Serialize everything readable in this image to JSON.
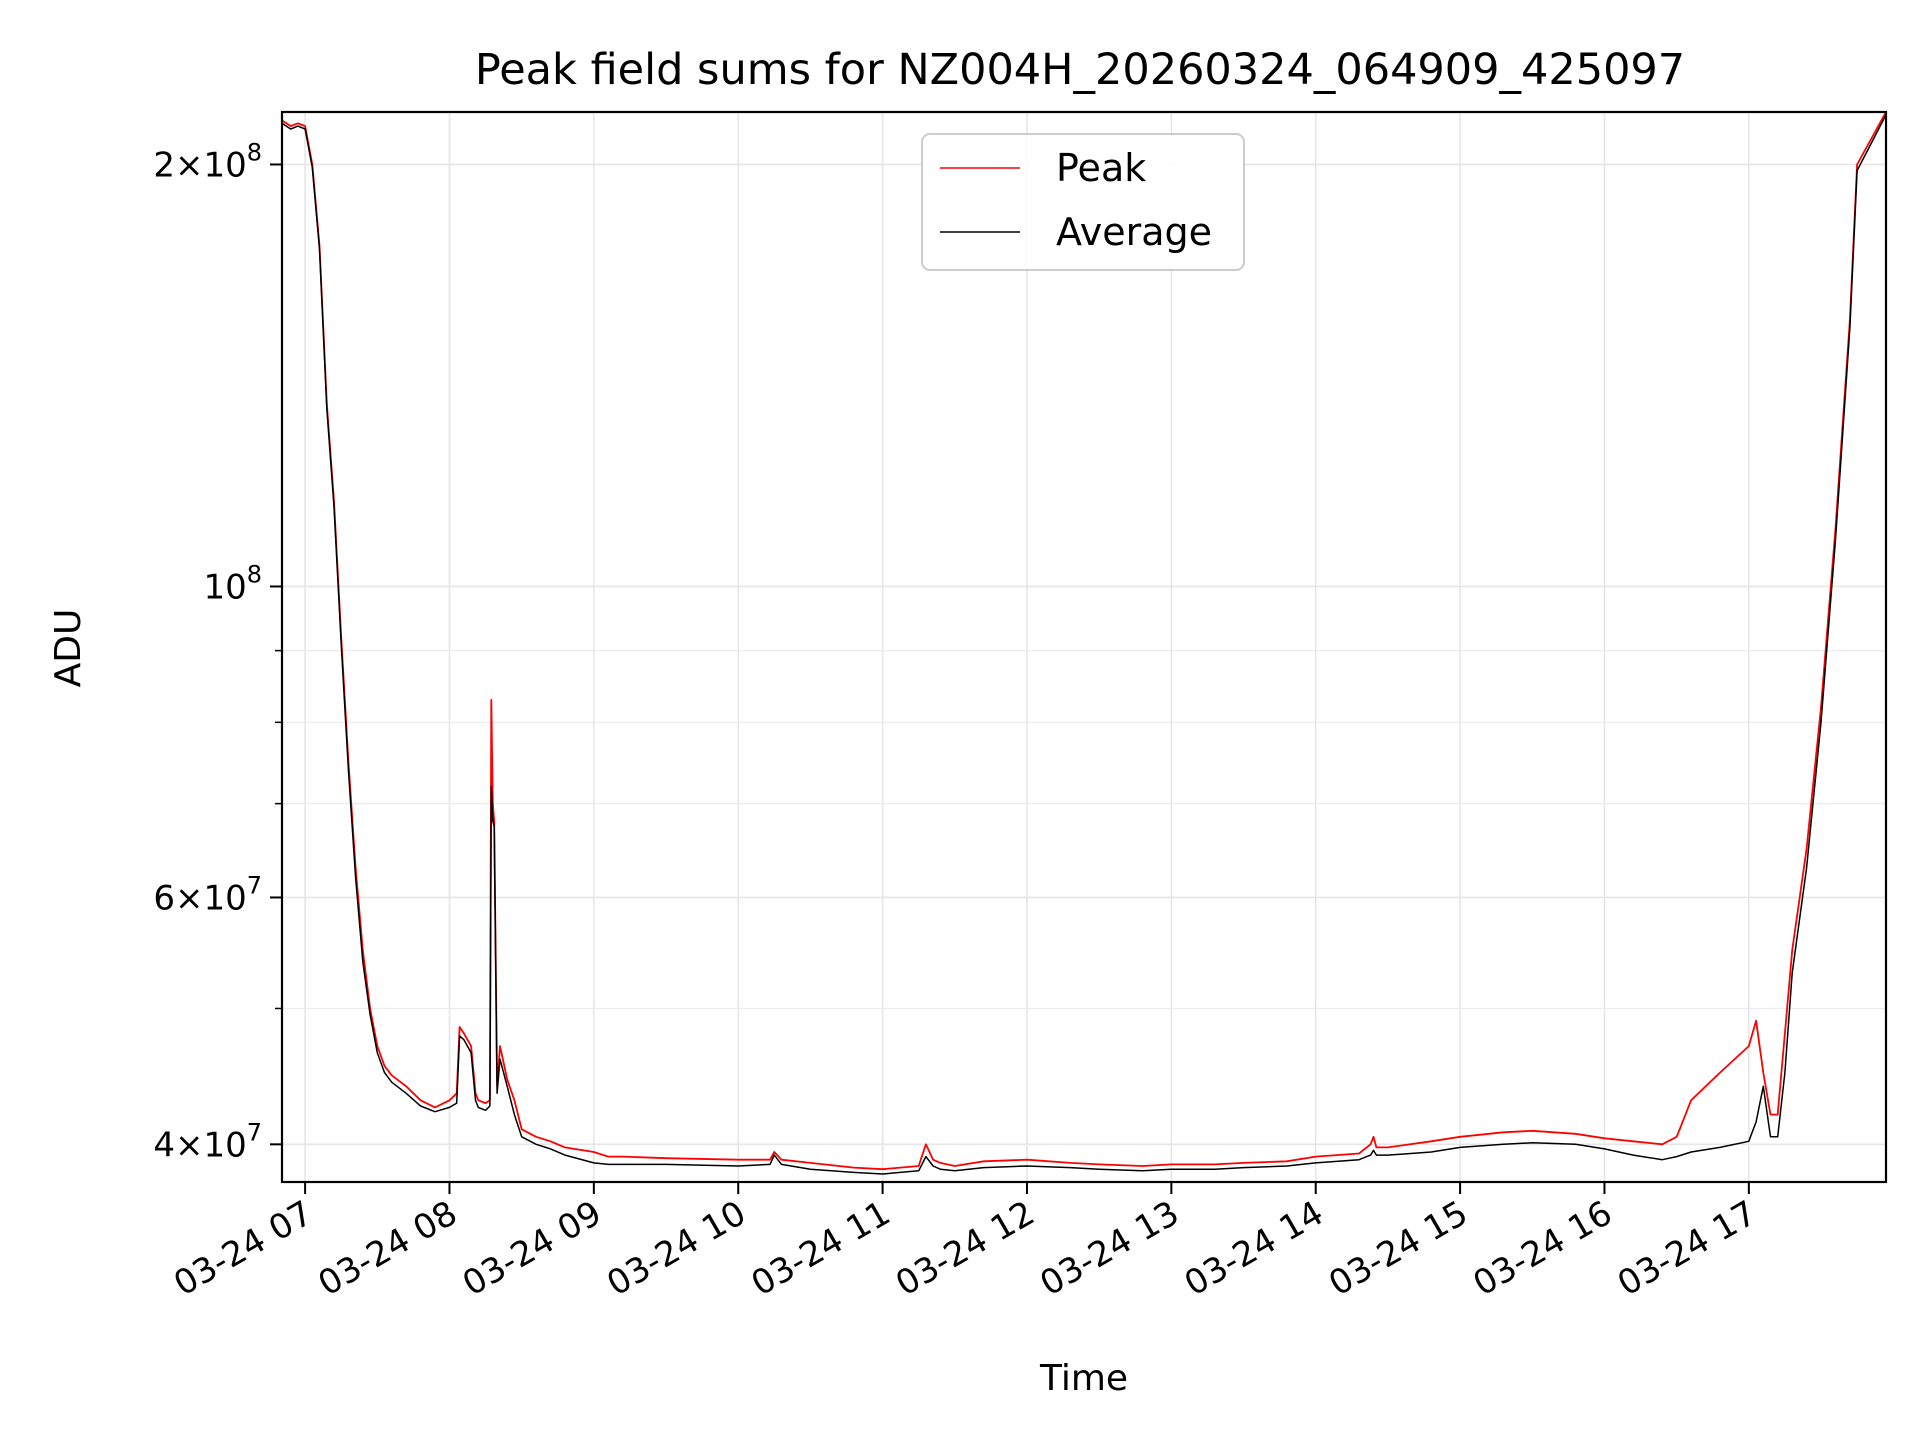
{
  "chart_data": {
    "type": "line",
    "title": "Peak field sums for NZ004H_20260324_064909_425097",
    "xlabel": "Time",
    "ylabel": "ADU",
    "yscale": "log",
    "xlim": [
      6.84,
      17.95
    ],
    "ylim": [
      37600000,
      218000000
    ],
    "grid": true,
    "legend_position": "top-center",
    "x_ticks": [
      {
        "value": 7,
        "label": "03-24 07"
      },
      {
        "value": 8,
        "label": "03-24 08"
      },
      {
        "value": 9,
        "label": "03-24 09"
      },
      {
        "value": 10,
        "label": "03-24 10"
      },
      {
        "value": 11,
        "label": "03-24 11"
      },
      {
        "value": 12,
        "label": "03-24 12"
      },
      {
        "value": 13,
        "label": "03-24 13"
      },
      {
        "value": 14,
        "label": "03-24 14"
      },
      {
        "value": 15,
        "label": "03-24 15"
      },
      {
        "value": 16,
        "label": "03-24 16"
      },
      {
        "value": 17,
        "label": "03-24 17"
      }
    ],
    "y_major_ticks": [
      {
        "value": 40000000,
        "base": "4",
        "exp": "7"
      },
      {
        "value": 60000000,
        "base": "6",
        "exp": "7"
      },
      {
        "value": 100000000,
        "base": "",
        "exp": "8"
      },
      {
        "value": 200000000,
        "base": "2",
        "exp": "8"
      }
    ],
    "y_minor_ticks": [
      50000000,
      70000000,
      80000000,
      90000000,
      300000000
    ],
    "y_tick_times_symbol": "×",
    "y_tick_base": "10",
    "series": [
      {
        "name": "Peak",
        "color": "#ff0000",
        "x": [
          6.84,
          6.9,
          6.95,
          7.0,
          7.05,
          7.1,
          7.15,
          7.2,
          7.25,
          7.3,
          7.35,
          7.4,
          7.45,
          7.5,
          7.55,
          7.6,
          7.7,
          7.8,
          7.9,
          8.0,
          8.05,
          8.07,
          8.1,
          8.15,
          8.18,
          8.2,
          8.25,
          8.28,
          8.29,
          8.3,
          8.31,
          8.33,
          8.35,
          8.4,
          8.45,
          8.5,
          8.6,
          8.7,
          8.8,
          9.0,
          9.1,
          9.2,
          9.5,
          10.0,
          10.22,
          10.25,
          10.3,
          10.5,
          10.8,
          11.0,
          11.25,
          11.3,
          11.35,
          11.4,
          11.5,
          11.7,
          12.0,
          12.3,
          12.5,
          12.8,
          13.0,
          13.3,
          13.5,
          13.8,
          14.0,
          14.3,
          14.38,
          14.4,
          14.42,
          14.5,
          14.8,
          15.0,
          15.3,
          15.5,
          15.8,
          16.0,
          16.2,
          16.4,
          16.5,
          16.6,
          16.8,
          17.0,
          17.05,
          17.1,
          17.15,
          17.2,
          17.25,
          17.3,
          17.4,
          17.5,
          17.6,
          17.7,
          17.75,
          17.95
        ],
        "y": [
          215000000,
          213000000,
          214000000,
          213000000,
          200000000,
          175000000,
          135000000,
          115000000,
          92000000,
          75000000,
          63000000,
          55000000,
          50000000,
          47000000,
          45500000,
          44800000,
          44000000,
          43000000,
          42500000,
          43000000,
          43500000,
          48500000,
          48000000,
          47000000,
          43500000,
          43000000,
          42800000,
          43000000,
          83000000,
          70000000,
          68000000,
          44000000,
          47000000,
          44500000,
          43000000,
          41000000,
          40500000,
          40200000,
          39800000,
          39500000,
          39200000,
          39200000,
          39100000,
          39000000,
          39000000,
          39500000,
          39000000,
          38800000,
          38500000,
          38400000,
          38600000,
          40000000,
          39000000,
          38800000,
          38600000,
          38900000,
          39000000,
          38800000,
          38700000,
          38600000,
          38700000,
          38700000,
          38800000,
          38900000,
          39200000,
          39400000,
          40000000,
          40500000,
          39800000,
          39800000,
          40200000,
          40500000,
          40800000,
          40900000,
          40700000,
          40400000,
          40200000,
          40000000,
          40500000,
          43000000,
          45000000,
          47000000,
          49000000,
          45000000,
          42000000,
          42000000,
          48000000,
          55000000,
          65000000,
          82000000,
          110000000,
          155000000,
          200000000,
          218000000
        ]
      },
      {
        "name": "Average",
        "color": "#000000",
        "x": [
          6.84,
          6.9,
          6.95,
          7.0,
          7.05,
          7.1,
          7.15,
          7.2,
          7.25,
          7.3,
          7.35,
          7.4,
          7.45,
          7.5,
          7.55,
          7.6,
          7.7,
          7.8,
          7.9,
          8.0,
          8.05,
          8.07,
          8.1,
          8.15,
          8.18,
          8.2,
          8.25,
          8.28,
          8.29,
          8.3,
          8.31,
          8.33,
          8.35,
          8.4,
          8.45,
          8.5,
          8.6,
          8.7,
          8.8,
          9.0,
          9.1,
          9.2,
          9.5,
          10.0,
          10.22,
          10.25,
          10.3,
          10.5,
          10.8,
          11.0,
          11.25,
          11.3,
          11.35,
          11.4,
          11.5,
          11.7,
          12.0,
          12.3,
          12.5,
          12.8,
          13.0,
          13.3,
          13.5,
          13.8,
          14.0,
          14.3,
          14.38,
          14.4,
          14.42,
          14.5,
          14.8,
          15.0,
          15.3,
          15.5,
          15.8,
          16.0,
          16.2,
          16.4,
          16.5,
          16.6,
          16.8,
          17.0,
          17.05,
          17.1,
          17.15,
          17.2,
          17.25,
          17.3,
          17.4,
          17.5,
          17.6,
          17.7,
          17.75,
          17.95
        ],
        "y": [
          214000000,
          212000000,
          213000000,
          212000000,
          199000000,
          174000000,
          134000000,
          114000000,
          91000000,
          74000000,
          62000000,
          54000000,
          49500000,
          46500000,
          45000000,
          44300000,
          43500000,
          42600000,
          42200000,
          42500000,
          42800000,
          47800000,
          47500000,
          46500000,
          43000000,
          42500000,
          42300000,
          42600000,
          72000000,
          68000000,
          67500000,
          43500000,
          46000000,
          44000000,
          42000000,
          40500000,
          40000000,
          39700000,
          39300000,
          38800000,
          38700000,
          38700000,
          38700000,
          38600000,
          38700000,
          39300000,
          38700000,
          38400000,
          38200000,
          38100000,
          38300000,
          39200000,
          38600000,
          38400000,
          38300000,
          38500000,
          38600000,
          38500000,
          38400000,
          38300000,
          38400000,
          38400000,
          38500000,
          38600000,
          38800000,
          39000000,
          39300000,
          39600000,
          39300000,
          39300000,
          39500000,
          39800000,
          40000000,
          40100000,
          40000000,
          39700000,
          39300000,
          39000000,
          39200000,
          39500000,
          39800000,
          40200000,
          41500000,
          44000000,
          40500000,
          40500000,
          45000000,
          53000000,
          63000000,
          80000000,
          108000000,
          153000000,
          198000000,
          217000000
        ]
      }
    ]
  }
}
